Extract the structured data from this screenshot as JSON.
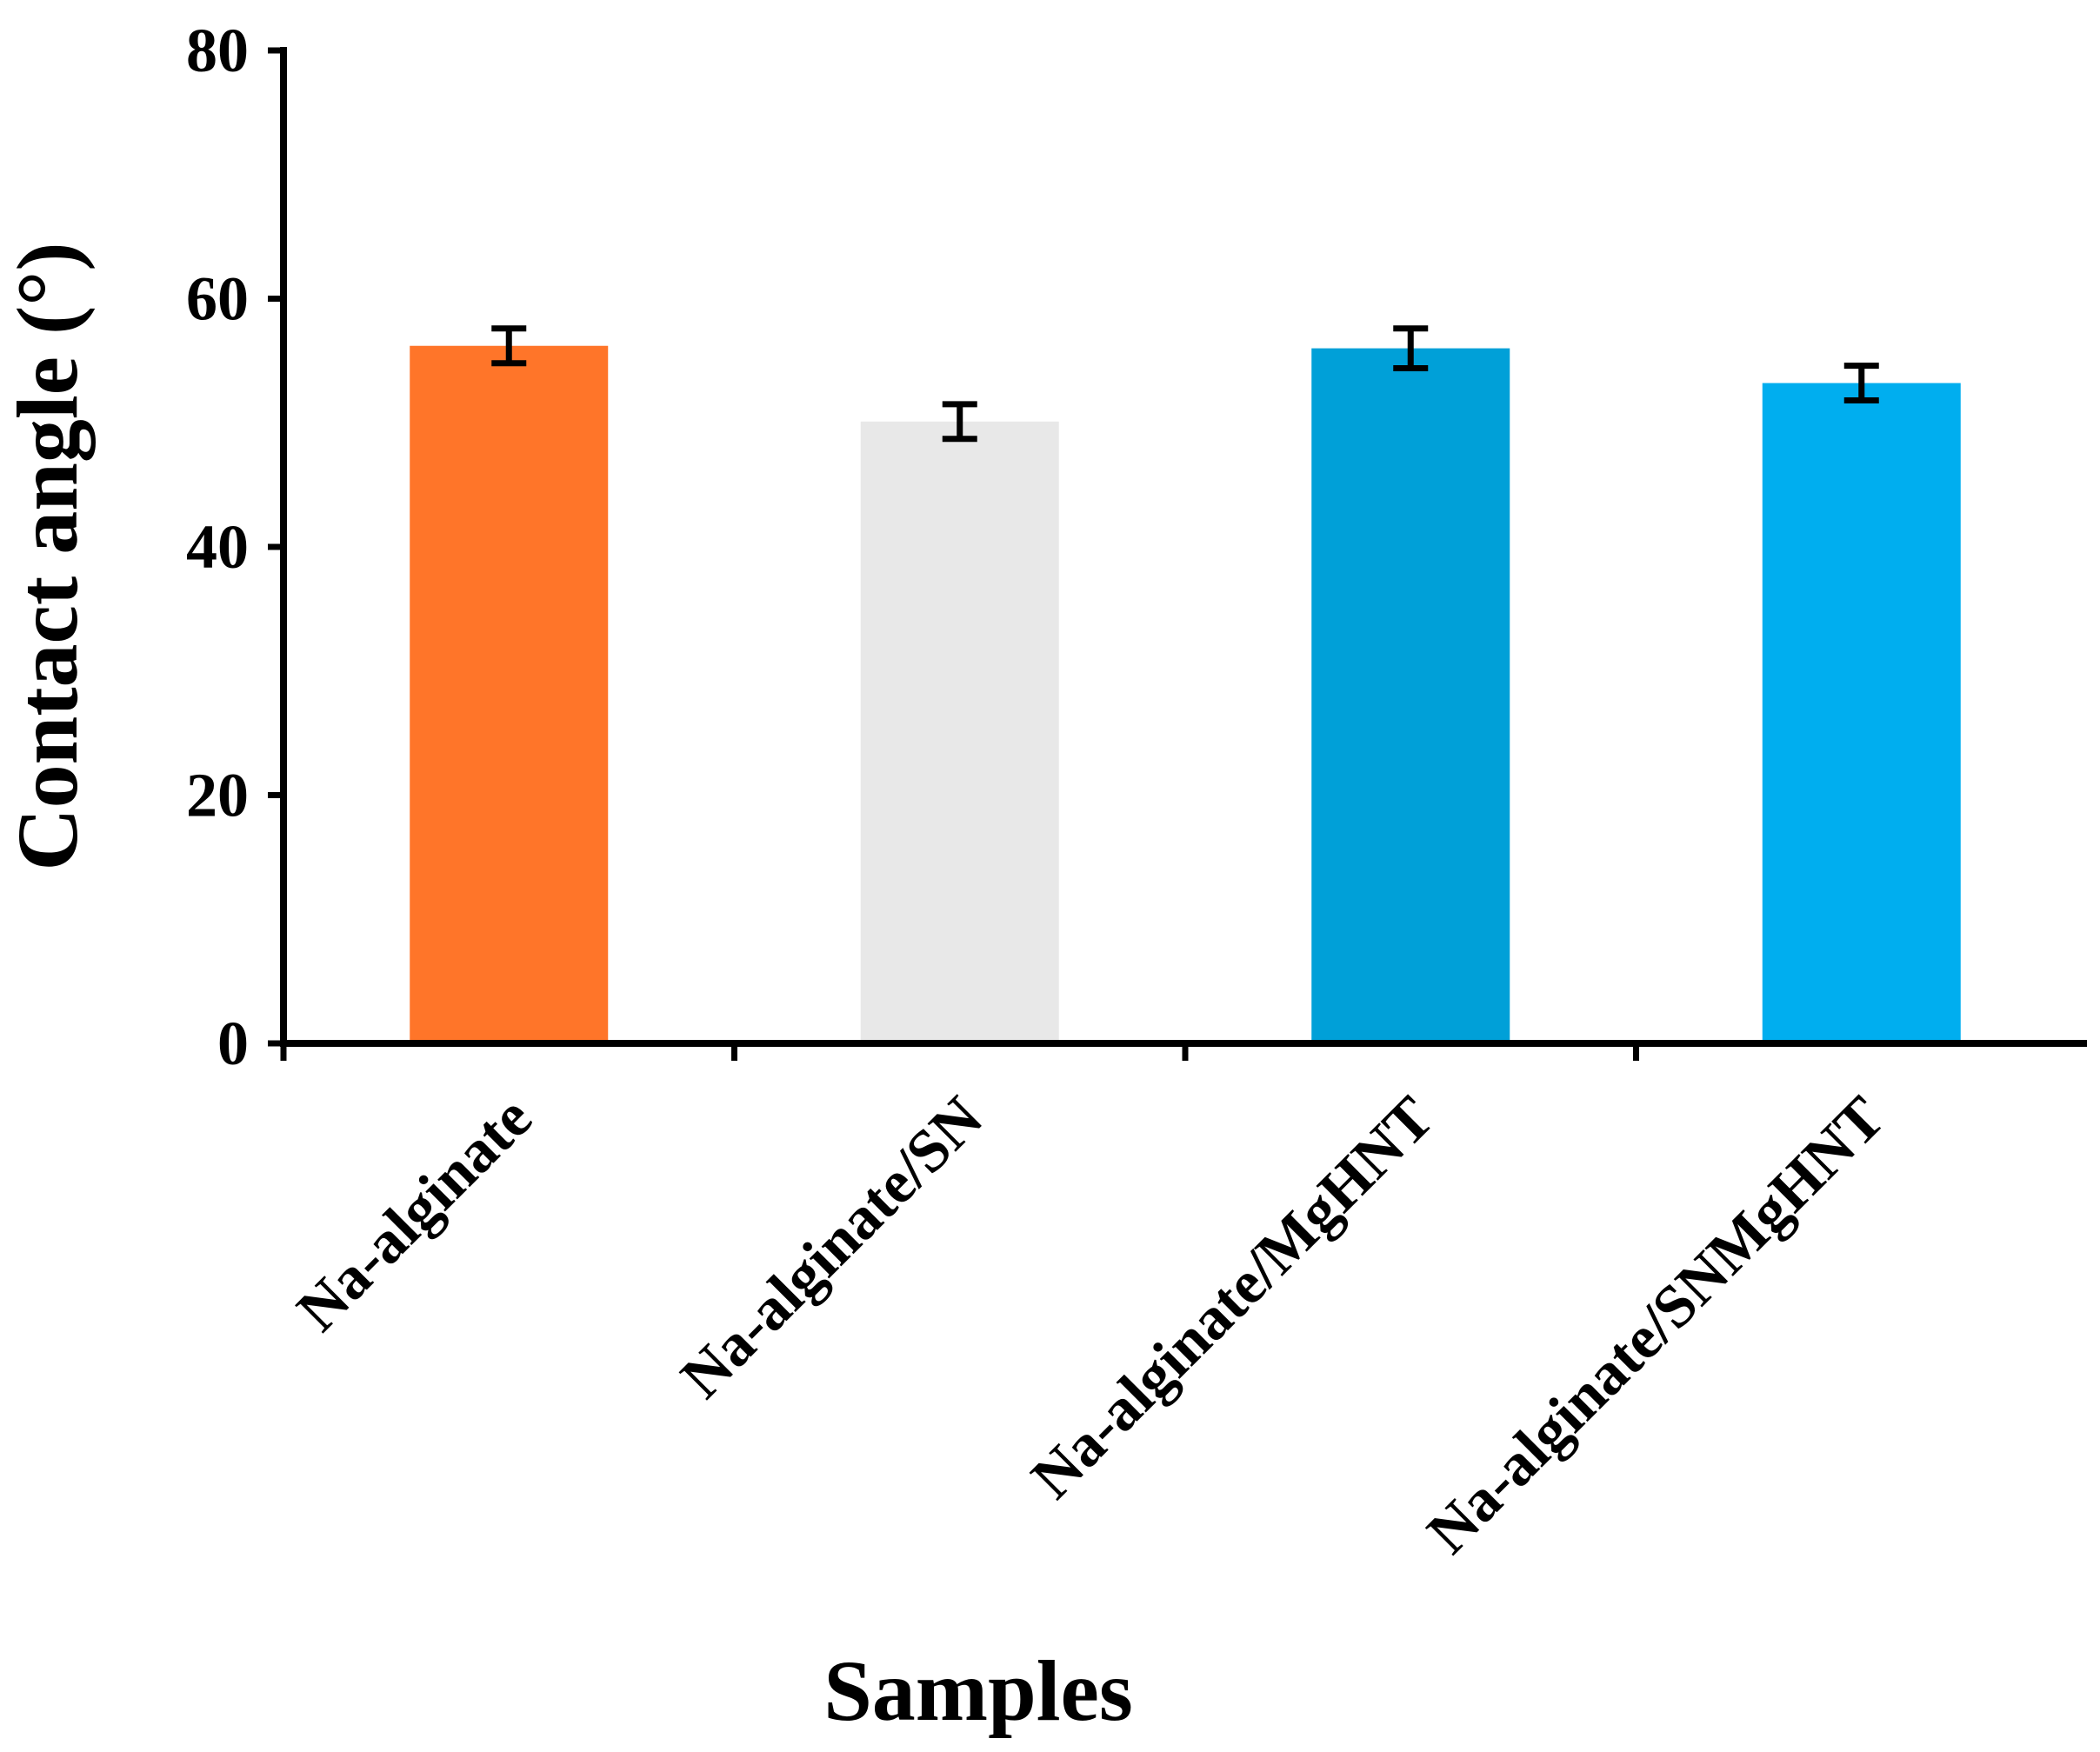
{
  "chart_data": {
    "type": "bar",
    "title": "",
    "xlabel": "Samples",
    "ylabel": "Contact angle (°)",
    "categories": [
      "Na-alginate",
      "Na-alginate/SN",
      "Na-alginate/MgHNT",
      "Na-alginate/SNMgHNT"
    ],
    "values": [
      56.2,
      50.1,
      56.0,
      53.2
    ],
    "errors": [
      1.4,
      1.4,
      1.6,
      1.4
    ],
    "colors": [
      "#FF7529",
      "#E8E8E8",
      "#00A0D8",
      "#00AEEF"
    ],
    "ylim": [
      0,
      80
    ],
    "yticks": [
      0,
      20,
      40,
      60,
      80
    ],
    "grid": false,
    "legend": "none"
  }
}
